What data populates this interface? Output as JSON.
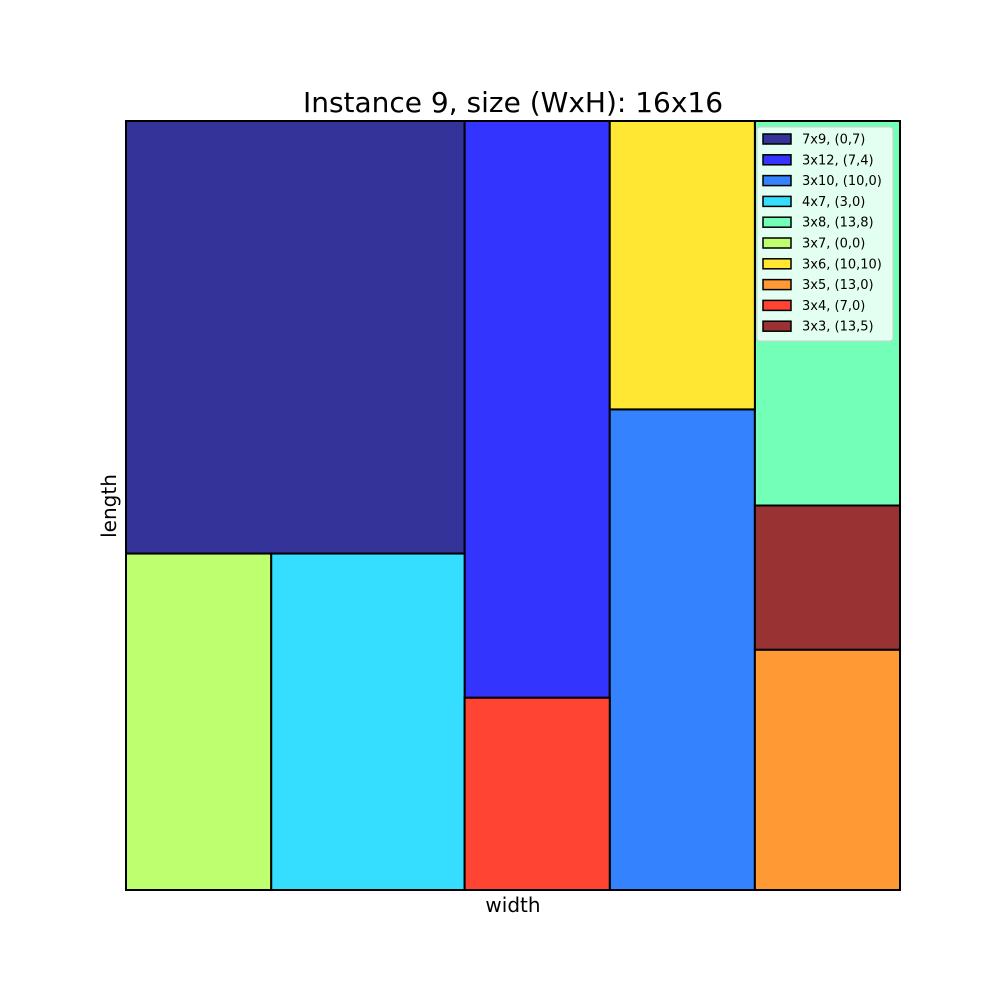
{
  "chart_data": {
    "type": "packing",
    "title": "Instance 9, size (WxH): 16x16",
    "xlabel": "width",
    "ylabel": "length",
    "container": {
      "width": 16,
      "height": 16
    },
    "xlim": [
      0,
      16
    ],
    "ylim": [
      0,
      16
    ],
    "grid": false,
    "legend_position": "top-right",
    "rects": [
      {
        "label": "7x9, (0,7)",
        "x": 0,
        "y": 7,
        "w": 7,
        "h": 9,
        "color": "#333399"
      },
      {
        "label": "3x12, (7,4)",
        "x": 7,
        "y": 4,
        "w": 3,
        "h": 12,
        "color": "#3434ff"
      },
      {
        "label": "3x10, (10,0)",
        "x": 10,
        "y": 0,
        "w": 3,
        "h": 10,
        "color": "#3582ff"
      },
      {
        "label": "4x7, (3,0)",
        "x": 3,
        "y": 0,
        "w": 4,
        "h": 7,
        "color": "#35ddff"
      },
      {
        "label": "3x8, (13,8)",
        "x": 13,
        "y": 8,
        "w": 3,
        "h": 8,
        "color": "#74ffb8"
      },
      {
        "label": "3x7, (0,0)",
        "x": 0,
        "y": 0,
        "w": 3,
        "h": 7,
        "color": "#bdff6f"
      },
      {
        "label": "3x6, (10,10)",
        "x": 10,
        "y": 10,
        "w": 3,
        "h": 6,
        "color": "#ffe733"
      },
      {
        "label": "3x5, (13,0)",
        "x": 13,
        "y": 0,
        "w": 3,
        "h": 5,
        "color": "#ff9933"
      },
      {
        "label": "3x4, (7,0)",
        "x": 7,
        "y": 0,
        "w": 3,
        "h": 4,
        "color": "#ff4433"
      },
      {
        "label": "3x3, (13,5)",
        "x": 13,
        "y": 5,
        "w": 3,
        "h": 3,
        "color": "#993333"
      }
    ]
  }
}
